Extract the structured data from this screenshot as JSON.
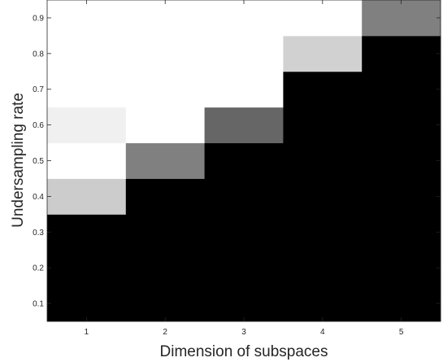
{
  "chart_data": {
    "type": "heatmap",
    "title": "",
    "xlabel": "Dimension of subspaces",
    "ylabel": "Undersampling rate",
    "x": [
      1,
      2,
      3,
      4,
      5
    ],
    "y": [
      0.1,
      0.2,
      0.3,
      0.4,
      0.5,
      0.6,
      0.7,
      0.8,
      0.9
    ],
    "xlim": [
      0.5,
      5.5
    ],
    "ylim": [
      0.05,
      0.95
    ],
    "xticks": [
      "1",
      "2",
      "3",
      "4",
      "5"
    ],
    "yticks": [
      "0.1",
      "0.2",
      "0.3",
      "0.4",
      "0.5",
      "0.6",
      "0.7",
      "0.8",
      "0.9"
    ],
    "colormap": "gray",
    "clim": [
      0,
      1
    ],
    "values": [
      [
        0.0,
        0.0,
        0.0,
        0.0,
        0.0
      ],
      [
        0.0,
        0.0,
        0.0,
        0.0,
        0.0
      ],
      [
        0.0,
        0.0,
        0.0,
        0.0,
        0.0
      ],
      [
        0.8,
        0.0,
        0.0,
        0.0,
        0.0
      ],
      [
        1.0,
        0.5,
        0.0,
        0.0,
        0.0
      ],
      [
        0.94,
        1.0,
        0.4,
        0.0,
        0.0
      ],
      [
        1.0,
        1.0,
        1.0,
        0.0,
        0.0
      ],
      [
        1.0,
        1.0,
        1.0,
        0.82,
        0.0
      ],
      [
        1.0,
        1.0,
        1.0,
        1.0,
        0.5
      ]
    ],
    "grid": false
  }
}
